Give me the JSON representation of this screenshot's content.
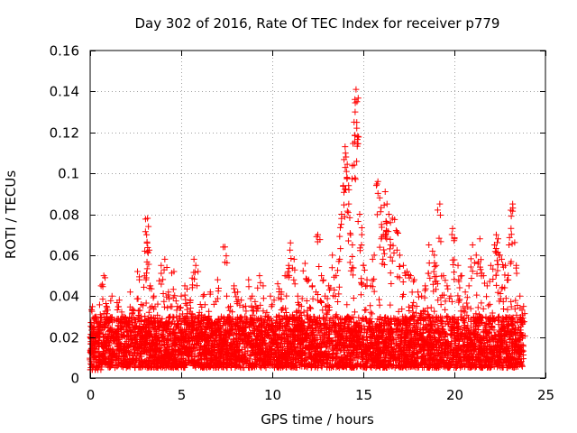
{
  "chart_data": {
    "type": "scatter",
    "title": "Day 302 of 2016, Rate Of TEC Index for receiver p779",
    "xlabel": "GPS time / hours",
    "ylabel": "ROTI / TECUs",
    "xlim": [
      0,
      25
    ],
    "ylim": [
      0,
      0.16
    ],
    "xticks": [
      0,
      5,
      10,
      15,
      20,
      25
    ],
    "xtick_labels": [
      "0",
      "5",
      "10",
      "15",
      "20",
      "25"
    ],
    "yticks": [
      0,
      0.02,
      0.04,
      0.06,
      0.08,
      0.1,
      0.12,
      0.14,
      0.16
    ],
    "ytick_labels": [
      "0",
      "0.02",
      "0.04",
      "0.06",
      "0.08",
      "0.1",
      "0.12",
      "0.14",
      "0.16"
    ],
    "grid": true,
    "marker": "+",
    "color": "#ff0000",
    "series": [
      {
        "name": "ROTI",
        "x": [
          0.05,
          0.1,
          0.2,
          0.3,
          0.5,
          0.6,
          0.75,
          0.9,
          1.0,
          1.2,
          1.4,
          1.6,
          1.8,
          2.0,
          2.2,
          2.4,
          2.6,
          2.7,
          2.8,
          3.0,
          3.1,
          3.15,
          3.2,
          3.3,
          3.4,
          3.5,
          3.7,
          3.9,
          4.1,
          4.3,
          4.4,
          4.6,
          4.8,
          5.0,
          5.2,
          5.3,
          5.5,
          5.7,
          5.8,
          6.0,
          6.2,
          6.4,
          6.6,
          6.8,
          7.0,
          7.2,
          7.4,
          7.5,
          7.7,
          7.9,
          8.1,
          8.3,
          8.5,
          8.7,
          8.9,
          9.1,
          9.3,
          9.5,
          9.7,
          9.9,
          10.1,
          10.3,
          10.5,
          10.7,
          10.9,
          11.0,
          11.2,
          11.4,
          11.6,
          11.8,
          12.0,
          12.2,
          12.4,
          12.5,
          12.7,
          12.9,
          13.1,
          13.3,
          13.5,
          13.7,
          13.8,
          13.9,
          14.0,
          14.05,
          14.1,
          14.2,
          14.3,
          14.4,
          14.5,
          14.55,
          14.6,
          14.65,
          14.7,
          14.8,
          14.9,
          15.0,
          15.2,
          15.4,
          15.6,
          15.8,
          15.9,
          16.0,
          16.1,
          16.2,
          16.3,
          16.4,
          16.5,
          16.6,
          16.8,
          17.0,
          17.2,
          17.4,
          17.6,
          17.8,
          18.0,
          18.2,
          18.4,
          18.6,
          18.8,
          18.9,
          19.0,
          19.2,
          19.4,
          19.6,
          19.8,
          19.9,
          20.0,
          20.2,
          20.4,
          20.6,
          20.8,
          21.0,
          21.2,
          21.4,
          21.6,
          21.8,
          22.0,
          22.2,
          22.3,
          22.4,
          22.5,
          22.6,
          22.8,
          23.0,
          23.1,
          23.2,
          23.4,
          23.6,
          23.8
        ],
        "y": [
          0.012,
          0.025,
          0.018,
          0.03,
          0.02,
          0.045,
          0.05,
          0.035,
          0.028,
          0.04,
          0.022,
          0.038,
          0.03,
          0.025,
          0.042,
          0.033,
          0.052,
          0.048,
          0.03,
          0.062,
          0.07,
          0.078,
          0.074,
          0.045,
          0.035,
          0.04,
          0.028,
          0.055,
          0.058,
          0.042,
          0.03,
          0.052,
          0.035,
          0.04,
          0.045,
          0.03,
          0.038,
          0.058,
          0.055,
          0.032,
          0.04,
          0.028,
          0.042,
          0.036,
          0.048,
          0.03,
          0.064,
          0.04,
          0.035,
          0.045,
          0.042,
          0.038,
          0.03,
          0.048,
          0.04,
          0.035,
          0.05,
          0.045,
          0.032,
          0.04,
          0.038,
          0.046,
          0.042,
          0.05,
          0.055,
          0.066,
          0.058,
          0.04,
          0.035,
          0.056,
          0.048,
          0.045,
          0.042,
          0.07,
          0.05,
          0.04,
          0.045,
          0.06,
          0.05,
          0.058,
          0.08,
          0.094,
          0.113,
          0.108,
          0.098,
          0.085,
          0.07,
          0.065,
          0.104,
          0.13,
          0.141,
          0.135,
          0.118,
          0.08,
          0.065,
          0.055,
          0.048,
          0.045,
          0.06,
          0.096,
          0.088,
          0.075,
          0.07,
          0.091,
          0.085,
          0.08,
          0.065,
          0.078,
          0.072,
          0.06,
          0.055,
          0.052,
          0.05,
          0.048,
          0.042,
          0.04,
          0.045,
          0.065,
          0.062,
          0.06,
          0.055,
          0.085,
          0.05,
          0.045,
          0.04,
          0.073,
          0.068,
          0.055,
          0.05,
          0.042,
          0.045,
          0.065,
          0.06,
          0.068,
          0.05,
          0.045,
          0.055,
          0.065,
          0.07,
          0.068,
          0.06,
          0.058,
          0.055,
          0.065,
          0.082,
          0.085,
          0.055,
          0.04,
          0.035
        ]
      }
    ],
    "band": {
      "description": "dense background cloud of ROTI values spanning the whole day",
      "x_range": [
        0,
        23.8
      ],
      "y_min": 0.005,
      "y_max": 0.03
    }
  }
}
